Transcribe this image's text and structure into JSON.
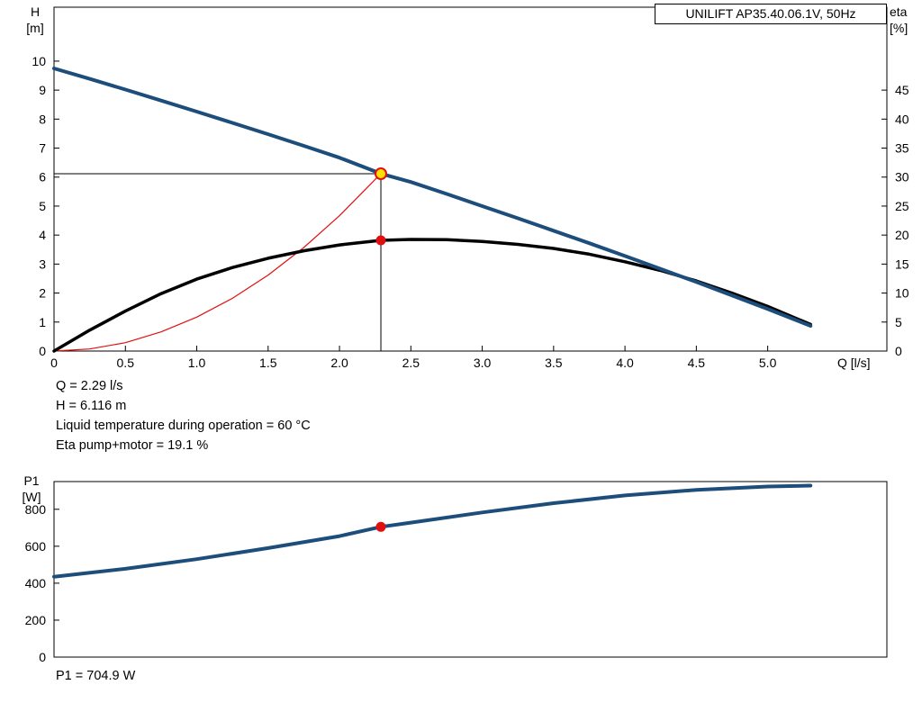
{
  "page": {
    "background": "#ffffff"
  },
  "colors": {
    "curve_blue": "#1d4e7b",
    "curve_black": "#000000",
    "curve_red": "#e01010",
    "marker_yellow": "#ffe000",
    "marker_red": "#e01010",
    "axis": "#000000"
  },
  "readouts": {
    "q": "Q = 2.29 l/s",
    "h": "H = 6.116 m",
    "temperature": "Liquid temperature during operation = 60 °C",
    "eta": "Eta pump+motor = 19.1 %",
    "p1": "P1 = 704.9 W"
  },
  "chart_data": [
    {
      "type": "line",
      "title": "UNILIFT AP35.40.06.1V, 50Hz",
      "xlabel": "Q [l/s]",
      "ylabel_left": [
        "H",
        "[m]"
      ],
      "ylabel_right": [
        "eta",
        "[%]"
      ],
      "xlim": [
        0,
        5.835
      ],
      "ylim_left": [
        0,
        11.86
      ],
      "ylim_right": [
        0,
        59.3
      ],
      "x_ticks": [
        0,
        0.5,
        1.0,
        1.5,
        2.0,
        2.5,
        3.0,
        3.5,
        4.0,
        4.5,
        5.0
      ],
      "x_tick_labels": [
        "0",
        "0.5",
        "1.0",
        "1.5",
        "2.0",
        "2.5",
        "3.0",
        "3.5",
        "4.0",
        "4.5",
        "5.0"
      ],
      "y_ticks_left": [
        0,
        1,
        2,
        3,
        4,
        5,
        6,
        7,
        8,
        9,
        10
      ],
      "y_ticks_right": [
        0,
        5,
        10,
        15,
        20,
        25,
        30,
        35,
        40,
        45
      ],
      "grid": false,
      "legend": "none",
      "crosshair": {
        "x": 2.29,
        "y": 6.116
      },
      "series": [
        {
          "name": "system-curve",
          "axis": "left",
          "color": "#e01010",
          "width": 1.2,
          "x": [
            0,
            0.25,
            0.5,
            0.75,
            1.0,
            1.25,
            1.5,
            1.75,
            2.0,
            2.29
          ],
          "y": [
            0,
            0.07,
            0.29,
            0.66,
            1.17,
            1.82,
            2.62,
            3.57,
            4.67,
            6.12
          ]
        },
        {
          "name": "eta-curve",
          "axis": "right",
          "color": "#000000",
          "width": 3.5,
          "x": [
            0,
            0.25,
            0.5,
            0.75,
            1.0,
            1.25,
            1.5,
            1.75,
            2.0,
            2.29,
            2.5,
            2.75,
            3.0,
            3.25,
            3.5,
            3.75,
            4.0,
            4.25,
            4.5,
            4.75,
            5.0,
            5.3
          ],
          "y": [
            0,
            3.6,
            6.9,
            9.9,
            12.4,
            14.4,
            16.0,
            17.3,
            18.3,
            19.1,
            19.25,
            19.2,
            18.9,
            18.4,
            17.7,
            16.7,
            15.4,
            13.9,
            12.1,
            10.0,
            7.7,
            4.6
          ]
        },
        {
          "name": "head-curve",
          "axis": "left",
          "color": "#1d4e7b",
          "width": 4,
          "x": [
            0,
            0.25,
            0.5,
            0.75,
            1.0,
            1.25,
            1.5,
            1.75,
            2.0,
            2.29,
            2.5,
            2.75,
            3.0,
            3.25,
            3.5,
            3.75,
            4.0,
            4.25,
            4.5,
            4.75,
            5.0,
            5.3
          ],
          "y": [
            9.75,
            9.39,
            9.02,
            8.64,
            8.26,
            7.87,
            7.48,
            7.08,
            6.67,
            6.12,
            5.83,
            5.42,
            5.0,
            4.58,
            4.15,
            3.72,
            3.28,
            2.83,
            2.38,
            1.92,
            1.45,
            0.87
          ]
        }
      ],
      "markers": [
        {
          "name": "duty-point",
          "axis": "left",
          "x": 2.29,
          "y": 6.116,
          "r": 6,
          "fill": "#ffe000",
          "stroke": "#e01010",
          "stroke_width": 2
        },
        {
          "name": "eta-point",
          "axis": "right",
          "x": 2.29,
          "y": 19.1,
          "r": 5,
          "fill": "#e01010",
          "stroke": "#e01010",
          "stroke_width": 1
        }
      ]
    },
    {
      "type": "line",
      "title": "",
      "xlabel": "",
      "ylabel_left": [
        "P1",
        "[W]"
      ],
      "xlim": [
        0,
        5.835
      ],
      "ylim_left": [
        0,
        950
      ],
      "x_ticks": [],
      "x_tick_labels": [],
      "y_ticks_left": [
        0,
        200,
        400,
        600,
        800
      ],
      "grid": false,
      "legend": "none",
      "series": [
        {
          "name": "p1-curve",
          "axis": "left",
          "color": "#1d4e7b",
          "width": 4,
          "x": [
            0,
            0.5,
            1.0,
            1.5,
            2.0,
            2.29,
            2.5,
            3.0,
            3.5,
            4.0,
            4.5,
            5.0,
            5.3
          ],
          "y": [
            435,
            478,
            530,
            590,
            655,
            705,
            728,
            783,
            833,
            875,
            905,
            923,
            928
          ]
        }
      ],
      "markers": [
        {
          "name": "p1-point",
          "axis": "left",
          "x": 2.29,
          "y": 704.9,
          "r": 5,
          "fill": "#e01010",
          "stroke": "#e01010",
          "stroke_width": 1
        }
      ]
    }
  ]
}
